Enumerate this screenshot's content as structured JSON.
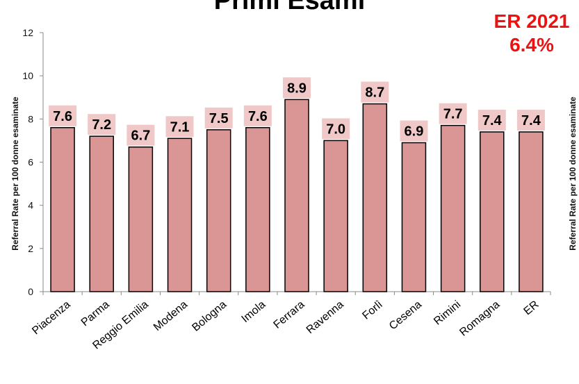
{
  "chart_data": {
    "type": "bar",
    "title": "Primi Esami",
    "annotation": [
      "ER 2021",
      "6.4%"
    ],
    "ylabel": "Referral Rate per 100 donne esaminate",
    "ylim": [
      0,
      12
    ],
    "yticks": [
      0,
      2,
      4,
      6,
      8,
      10,
      12
    ],
    "categories": [
      "Piacenza",
      "Parma",
      "Reggio Emilia",
      "Modena",
      "Bologna",
      "Imola",
      "Ferrara",
      "Ravenna",
      "Forlì",
      "Cesena",
      "Rimini",
      "Romagna",
      "ER"
    ],
    "values": [
      7.6,
      7.2,
      6.7,
      7.1,
      7.5,
      7.6,
      8.9,
      7.0,
      8.7,
      6.9,
      7.7,
      7.4,
      7.4
    ],
    "data_labels": [
      "7.6",
      "7.2",
      "6.7",
      "7.1",
      "7.5",
      "7.6",
      "8.9",
      "7.0",
      "8.7",
      "6.9",
      "7.7",
      "7.4",
      "7.4"
    ],
    "grid": false,
    "colors": {
      "bar": "#d99694",
      "bar_edge": "#000000",
      "label_box": "#f0c8c8",
      "annotation": "#ee1111"
    }
  }
}
